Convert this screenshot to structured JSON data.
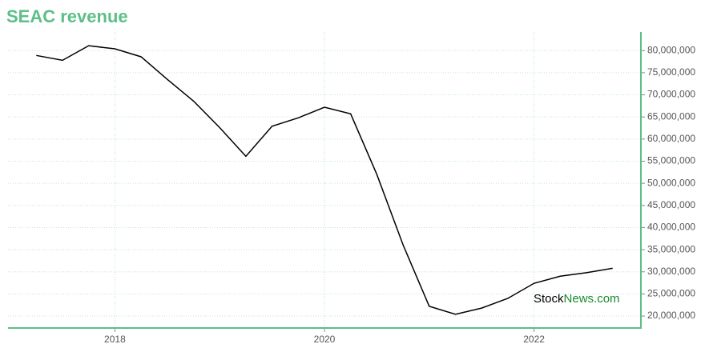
{
  "chart_data": {
    "type": "line",
    "title": "SEAC revenue",
    "x": [
      2017.25,
      2017.5,
      2017.75,
      2018,
      2018.25,
      2018.5,
      2018.75,
      2019,
      2019.25,
      2019.5,
      2019.75,
      2020,
      2020.25,
      2020.5,
      2020.75,
      2021,
      2021.25,
      2021.5,
      2021.75,
      2022,
      2022.25,
      2022.5,
      2022.75
    ],
    "series": [
      {
        "color": "#000000",
        "values": [
          78900000,
          77800000,
          81100000,
          80400000,
          78600000,
          73500000,
          68600000,
          62600000,
          56100000,
          62900000,
          64800000,
          67200000,
          65700000,
          52000000,
          36100000,
          22200000,
          20400000,
          21800000,
          24000000,
          27400000,
          29000000,
          29800000,
          30800000
        ]
      }
    ],
    "xlim": [
      2016.98,
      2023.02
    ],
    "xticks": [
      2018,
      2020,
      2022
    ],
    "ylim": [
      17300000,
      84200000
    ],
    "yticks": [
      {
        "value": 20000000,
        "label": "20,000,000"
      },
      {
        "value": 25000000,
        "label": "25,000,000"
      },
      {
        "value": 30000000,
        "label": "30,000,000"
      },
      {
        "value": 35000000,
        "label": "35,000,000"
      },
      {
        "value": 40000000,
        "label": "40,000,000"
      },
      {
        "value": 45000000,
        "label": "45,000,000"
      },
      {
        "value": 50000000,
        "label": "50,000,000"
      },
      {
        "value": 55000000,
        "label": "55,000,000"
      },
      {
        "value": 60000000,
        "label": "60,000,000"
      },
      {
        "value": 65000000,
        "label": "65,000,000"
      },
      {
        "value": 70000000,
        "label": "70,000,000"
      },
      {
        "value": 75000000,
        "label": "75,000,000"
      },
      {
        "value": 80000000,
        "label": "80,000,000"
      }
    ],
    "grid": true,
    "axis_color": "#5cbf87",
    "watermark": {
      "dark": "Stock",
      "green": "News.com"
    }
  }
}
